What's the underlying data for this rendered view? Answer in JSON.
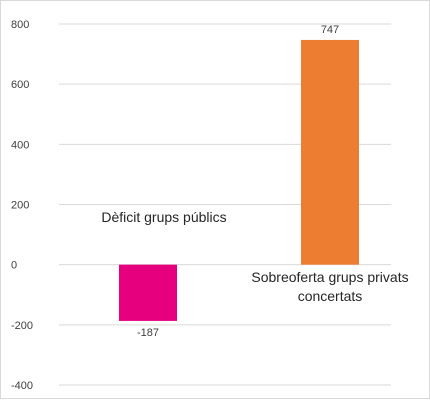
{
  "chart_data": {
    "type": "bar",
    "categories": [
      "Dèficit grups públics",
      "Sobreoferta grups privats concertats"
    ],
    "values": [
      -187,
      747
    ],
    "colors": [
      "#e6007e",
      "#ed7d31"
    ],
    "data_labels": [
      "-187",
      "747"
    ],
    "annotations": [
      {
        "lines": [
          "Dèficit grups públics"
        ]
      },
      {
        "lines": [
          "Sobreoferta grups privats",
          "concertats"
        ]
      }
    ],
    "ylim": [
      -400,
      800
    ],
    "yticks": [
      800,
      600,
      400,
      200,
      0,
      -200,
      -400
    ],
    "ytick_labels": [
      "800",
      "600",
      "400",
      "200",
      "0",
      "-200",
      "-400"
    ],
    "grid": true,
    "legend": "none",
    "title": "",
    "xlabel": "",
    "ylabel": ""
  }
}
